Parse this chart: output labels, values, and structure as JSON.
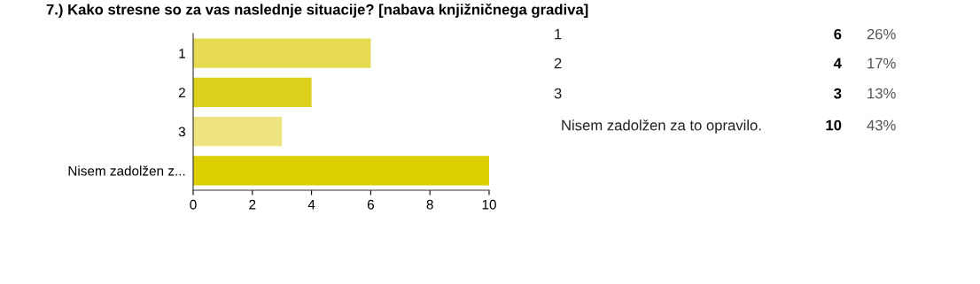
{
  "chart_data": [
    {
      "type": "bar",
      "orientation": "horizontal",
      "title": "7.) Kako stresne so za vas naslednje situacije? [nabava knjižničnega gradiva]",
      "categories": [
        "1",
        "2",
        "3",
        "Nisem zadolžen z..."
      ],
      "values": [
        6,
        4,
        3,
        10
      ],
      "colors": [
        "#e6da52",
        "#dccf1e",
        "#ede380",
        "#dccf00"
      ],
      "xlim": [
        0,
        10
      ],
      "xticks": [
        0,
        2,
        4,
        6,
        8,
        10
      ],
      "grid": false,
      "legend": false
    },
    {
      "type": "other",
      "categories": [
        "1",
        "2",
        "3",
        "Nisem zadolžen za to opravilo."
      ],
      "values": [
        26,
        17,
        13,
        43
      ],
      "value_labels": [
        "26%",
        "17%",
        "13%",
        "43%"
      ],
      "annotations": [
        "6",
        "4",
        "3",
        "10"
      ]
    }
  ]
}
